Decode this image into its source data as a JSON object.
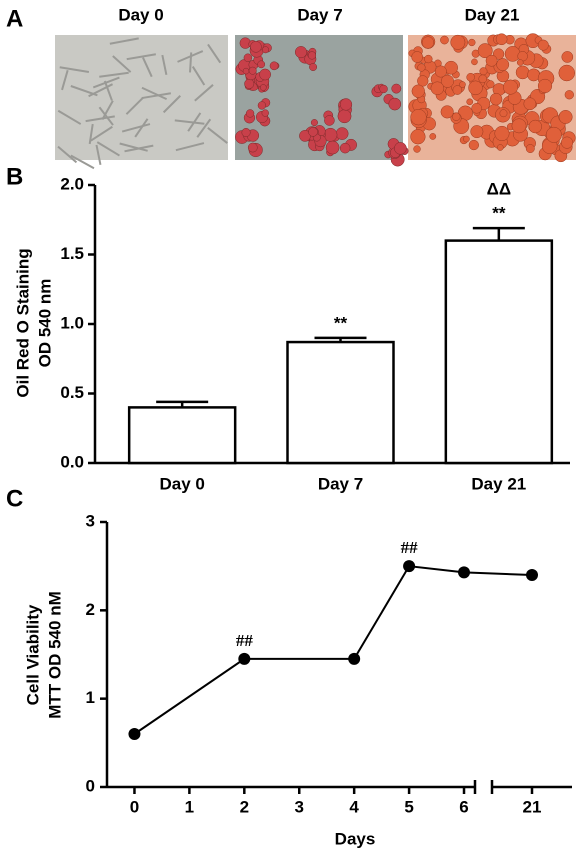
{
  "panel_labels": [
    "A",
    "B",
    "C"
  ],
  "images": {
    "captions": [
      "Day 0",
      "Day 7",
      "Day 21"
    ]
  },
  "chart_data": [
    {
      "type": "bar",
      "ylabel": [
        "Oil Red O Staining",
        "OD 540 nm"
      ],
      "categories": [
        "Day 0",
        "Day 7",
        "Day 21"
      ],
      "values": [
        0.4,
        0.87,
        1.6
      ],
      "errors": [
        0.04,
        0.03,
        0.09
      ],
      "annotations": [
        [],
        [
          "**"
        ],
        [
          "ΔΔ",
          "**"
        ]
      ],
      "color": "#ffffff",
      "ylim": [
        0,
        2
      ],
      "yticks": [
        {
          "value": 0,
          "label": "0.0"
        },
        {
          "value": 0.5,
          "label": "0.5"
        },
        {
          "value": 1,
          "label": "1.0"
        },
        {
          "value": 1.5,
          "label": "1.5"
        },
        {
          "value": 2,
          "label": "2.0"
        }
      ]
    },
    {
      "type": "line",
      "ylabel": [
        "Cell Viability",
        "MTT OD 540 nM"
      ],
      "xlabel": "Days",
      "x": [
        0,
        2,
        4,
        5,
        6,
        21
      ],
      "values": [
        0.6,
        1.45,
        1.45,
        2.5,
        2.43,
        2.4
      ],
      "annotations": [
        [],
        [
          "##"
        ],
        [],
        [
          "##"
        ],
        [],
        []
      ],
      "color": "#000000",
      "xlim": [
        -0.5,
        22
      ],
      "xbreak": [
        6.2,
        20
      ],
      "xticks": [
        0,
        1,
        2,
        3,
        4,
        5,
        6,
        21
      ],
      "ylim": [
        0,
        3
      ],
      "yticks": [
        0,
        1,
        2,
        3
      ]
    }
  ]
}
